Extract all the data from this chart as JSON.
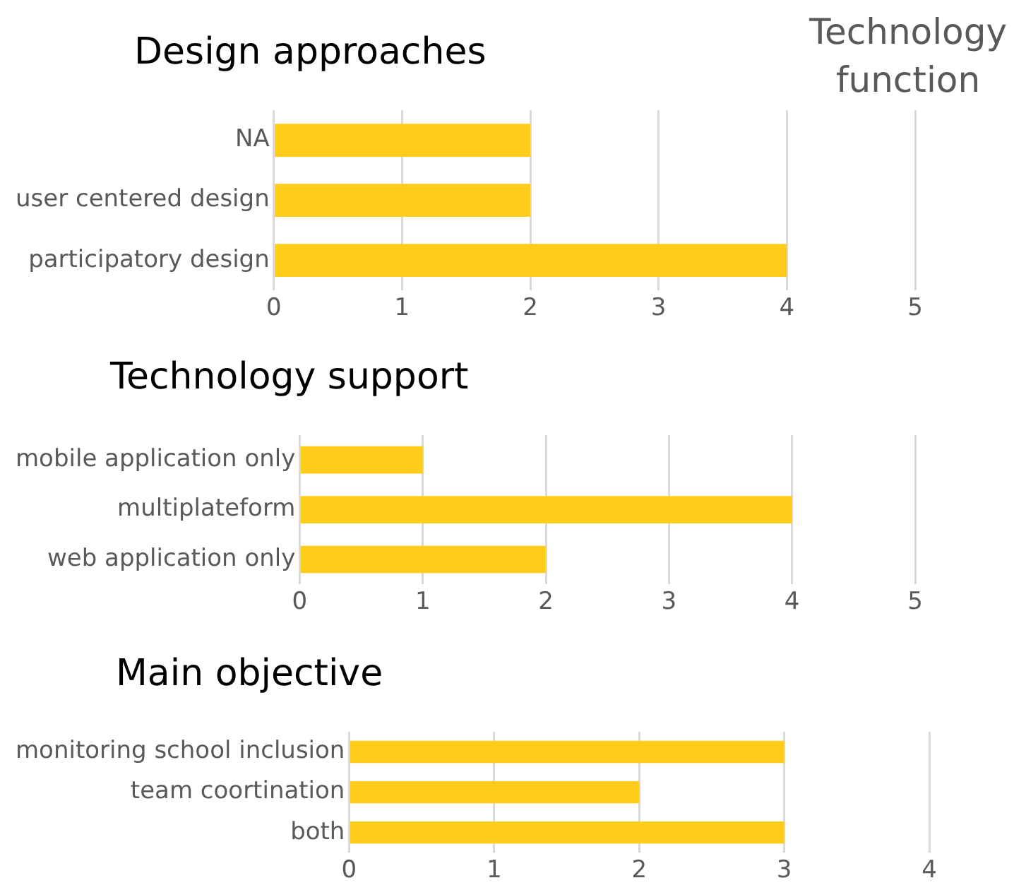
{
  "chart_data": [
    {
      "type": "bar",
      "orientation": "horizontal",
      "title": "Design approaches",
      "categories": [
        "NA",
        "user centered design",
        "participatory design"
      ],
      "values": [
        2,
        2,
        4
      ],
      "color": "#ffcc1a",
      "xlim": [
        0,
        5
      ],
      "xticks": [
        0,
        1,
        2,
        3,
        4,
        5
      ],
      "grid": "x"
    },
    {
      "type": "bar",
      "orientation": "horizontal",
      "title": "Technology support",
      "categories": [
        "mobile application only",
        "multiplateform",
        "web application only"
      ],
      "values": [
        1,
        4,
        2
      ],
      "color": "#ffcc1a",
      "xlim": [
        0,
        5
      ],
      "xticks": [
        0,
        1,
        2,
        3,
        4,
        5
      ],
      "grid": "x"
    },
    {
      "type": "bar",
      "orientation": "horizontal",
      "title": "Main objective",
      "categories": [
        "monitoring school inclusion",
        "team coortination",
        "both"
      ],
      "values": [
        3,
        2,
        3
      ],
      "color": "#ffcc1a",
      "xlim": [
        0,
        4
      ],
      "xticks": [
        0,
        1,
        2,
        3,
        4
      ],
      "grid": "x"
    },
    {
      "type": "other",
      "title": "Technology function"
    }
  ]
}
